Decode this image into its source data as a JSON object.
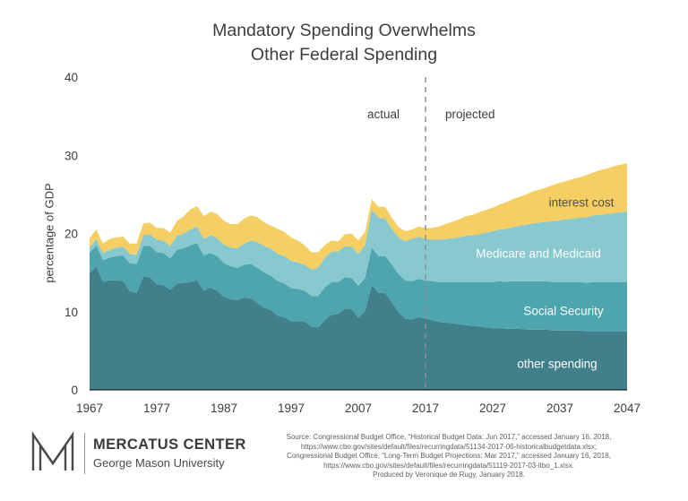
{
  "title": {
    "line1": "Mandatory Spending Overwhelms",
    "line2": "Other Federal Spending"
  },
  "axes": {
    "y_label": "percentage of GDP"
  },
  "annotations": {
    "actual": "actual",
    "projected": "projected"
  },
  "chart_data": {
    "type": "area",
    "stacked": true,
    "title": "Mandatory Spending Overwhelms Other Federal Spending",
    "xlabel": "",
    "ylabel": "percentage of GDP",
    "xlim": [
      1967,
      2047
    ],
    "ylim": [
      0,
      40
    ],
    "x_ticks": [
      1967,
      1977,
      1987,
      1997,
      2007,
      2017,
      2027,
      2037,
      2047
    ],
    "y_ticks": [
      0,
      10,
      20,
      30,
      40
    ],
    "divider_x": 2017,
    "divider_color": "#8f8f8f",
    "axis_color": "#222222",
    "x": [
      1967,
      1968,
      1969,
      1970,
      1971,
      1972,
      1973,
      1974,
      1975,
      1976,
      1977,
      1978,
      1979,
      1980,
      1981,
      1982,
      1983,
      1984,
      1985,
      1986,
      1987,
      1988,
      1989,
      1990,
      1991,
      1992,
      1993,
      1994,
      1995,
      1996,
      1997,
      1998,
      1999,
      2000,
      2001,
      2002,
      2003,
      2004,
      2005,
      2006,
      2007,
      2008,
      2009,
      2010,
      2011,
      2012,
      2013,
      2014,
      2015,
      2016,
      2017,
      2018,
      2019,
      2020,
      2021,
      2022,
      2023,
      2024,
      2025,
      2026,
      2027,
      2028,
      2029,
      2030,
      2031,
      2032,
      2033,
      2034,
      2035,
      2036,
      2037,
      2038,
      2039,
      2040,
      2041,
      2042,
      2043,
      2044,
      2045,
      2046,
      2047
    ],
    "series": [
      {
        "name": "other spending",
        "color": "#41808a",
        "values": [
          14.9,
          15.8,
          13.8,
          14.0,
          14.0,
          13.9,
          12.6,
          12.4,
          14.5,
          14.4,
          13.5,
          13.4,
          12.8,
          13.6,
          13.7,
          13.8,
          14.0,
          12.7,
          13.1,
          12.7,
          11.9,
          11.6,
          11.5,
          11.8,
          11.7,
          11.1,
          10.5,
          10.2,
          9.5,
          9.3,
          8.8,
          8.8,
          8.8,
          8.1,
          8.0,
          8.9,
          9.6,
          9.7,
          10.4,
          10.3,
          9.2,
          10.1,
          13.4,
          12.4,
          12.4,
          11.2,
          9.9,
          9.1,
          9.0,
          9.3,
          9.1,
          8.9,
          8.7,
          8.6,
          8.5,
          8.4,
          8.3,
          8.2,
          8.1,
          8.0,
          7.9,
          7.9,
          7.8,
          7.8,
          7.8,
          7.7,
          7.7,
          7.7,
          7.7,
          7.6,
          7.6,
          7.6,
          7.6,
          7.6,
          7.5,
          7.5,
          7.5,
          7.5,
          7.5,
          7.5,
          7.5
        ]
      },
      {
        "name": "Social Security",
        "color": "#4fa5ad",
        "values": [
          2.6,
          2.7,
          2.8,
          2.9,
          3.1,
          3.3,
          3.6,
          3.7,
          3.9,
          4.0,
          4.1,
          4.1,
          4.0,
          4.3,
          4.4,
          4.7,
          4.8,
          4.5,
          4.4,
          4.4,
          4.3,
          4.2,
          4.1,
          4.2,
          4.4,
          4.5,
          4.5,
          4.4,
          4.4,
          4.3,
          4.2,
          4.1,
          3.9,
          3.9,
          4.0,
          4.2,
          4.2,
          4.1,
          4.0,
          4.0,
          4.1,
          4.2,
          4.8,
          4.7,
          4.7,
          4.8,
          4.9,
          4.9,
          4.9,
          4.9,
          4.9,
          5.0,
          5.1,
          5.2,
          5.3,
          5.4,
          5.5,
          5.6,
          5.7,
          5.8,
          5.9,
          6.0,
          6.0,
          6.1,
          6.1,
          6.2,
          6.2,
          6.2,
          6.2,
          6.2,
          6.2,
          6.2,
          6.2,
          6.2,
          6.2,
          6.3,
          6.3,
          6.3,
          6.3,
          6.3,
          6.3
        ]
      },
      {
        "name": "Medicare and Medicaid",
        "color": "#87c9cf",
        "values": [
          0.7,
          0.8,
          0.9,
          1.0,
          1.1,
          1.1,
          1.2,
          1.2,
          1.4,
          1.5,
          1.6,
          1.6,
          1.6,
          1.8,
          1.9,
          2.0,
          2.1,
          2.1,
          2.3,
          2.3,
          2.4,
          2.4,
          2.5,
          2.7,
          3.0,
          3.3,
          3.4,
          3.5,
          3.5,
          3.5,
          3.5,
          3.4,
          3.3,
          3.4,
          3.6,
          3.8,
          3.9,
          3.9,
          4.0,
          4.0,
          4.1,
          4.2,
          4.9,
          4.9,
          4.8,
          4.6,
          4.7,
          5.0,
          5.4,
          5.4,
          5.3,
          5.3,
          5.4,
          5.5,
          5.6,
          5.7,
          5.9,
          6.0,
          6.1,
          6.3,
          6.5,
          6.6,
          6.8,
          6.9,
          7.1,
          7.2,
          7.4,
          7.5,
          7.6,
          7.8,
          7.9,
          8.0,
          8.1,
          8.2,
          8.4,
          8.5,
          8.6,
          8.7,
          8.8,
          8.9,
          9.0
        ]
      },
      {
        "name": "interest cost",
        "color": "#f6cf64",
        "values": [
          1.2,
          1.2,
          1.2,
          1.4,
          1.3,
          1.3,
          1.3,
          1.4,
          1.5,
          1.5,
          1.5,
          1.6,
          1.7,
          1.9,
          2.2,
          2.6,
          2.6,
          2.9,
          3.0,
          3.1,
          3.0,
          3.0,
          3.1,
          3.2,
          3.2,
          3.2,
          3.0,
          2.9,
          3.2,
          3.1,
          3.0,
          2.8,
          2.5,
          2.2,
          2.0,
          1.6,
          1.4,
          1.3,
          1.5,
          1.7,
          1.7,
          1.7,
          1.3,
          1.4,
          1.5,
          1.4,
          1.3,
          1.3,
          1.2,
          1.3,
          1.4,
          1.5,
          1.7,
          1.9,
          2.1,
          2.3,
          2.5,
          2.6,
          2.8,
          2.9,
          3.0,
          3.2,
          3.4,
          3.6,
          3.7,
          3.9,
          4.1,
          4.2,
          4.4,
          4.6,
          4.8,
          4.9,
          5.1,
          5.2,
          5.4,
          5.5,
          5.7,
          5.8,
          6.0,
          6.1,
          6.2
        ]
      }
    ],
    "legend_position": "inside-right"
  },
  "footer": {
    "logo_title": "MERCATUS CENTER",
    "logo_subtitle": "George Mason University",
    "source_lines": [
      "Source: Congressional Budget Office, “Historical Budget Data: Jun 2017,” accessed January 16, 2018,",
      "https://www.cbo.gov/sites/default/files/recurringdata/51134-2017-06-historicalbudgetdata.xlsx;",
      "Congressional Budget Office, “Long-Term Budget Projections: Mar 2017,” accessed January 16, 2018,",
      "https://www.cbo.gov/sites/default/files/recurringdata/51119-2017-03-ltbo_1.xlsx.",
      "Produced by Veronique de Rugy, January 2018."
    ]
  }
}
